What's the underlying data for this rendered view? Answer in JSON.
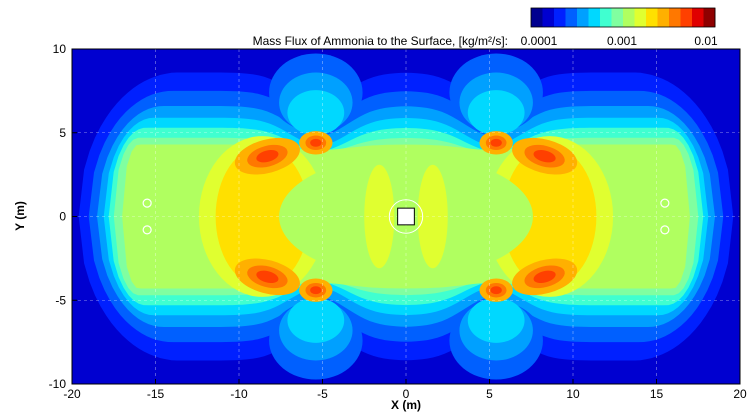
{
  "chart_data": {
    "type": "heatmap",
    "title": "",
    "xlabel": "X (m)",
    "ylabel": "Y (m)",
    "xlim": [
      -20,
      20
    ],
    "ylim": [
      -10,
      10
    ],
    "x_ticks": [
      -20,
      -15,
      -10,
      -5,
      0,
      5,
      10,
      15,
      20
    ],
    "y_ticks": [
      -10,
      -5,
      0,
      5,
      10
    ],
    "grid": "dashed",
    "colorbar": {
      "title": "Mass Flux of Ammonia to the Surface, [kg/m²/s]:",
      "scale": "log",
      "min": 0.0001,
      "max": 0.01,
      "tick_values": [
        0.0001,
        0.001,
        0.01
      ],
      "tick_labels": [
        "0.0001",
        "0.001",
        "0.01"
      ],
      "placement": "top-right",
      "colors": [
        "#00008F",
        "#0000D0",
        "#0020FF",
        "#0060FF",
        "#00A0FF",
        "#00D8FF",
        "#40FFD0",
        "#80FFA0",
        "#B0FF60",
        "#E0FF30",
        "#FFE000",
        "#FFB000",
        "#FF7800",
        "#FF4000",
        "#E00000",
        "#8F0000"
      ]
    },
    "source": {
      "x": 0,
      "y": 0,
      "size": 1,
      "shape": "square"
    },
    "source_ring": {
      "cx": 0,
      "cy": 0,
      "r": 1.0
    },
    "markers": [
      {
        "x": -15.5,
        "y": 0.8
      },
      {
        "x": -15.5,
        "y": -0.8
      },
      {
        "x": 15.5,
        "y": 0.8
      },
      {
        "x": 15.5,
        "y": -0.8
      }
    ],
    "hotspots": [
      {
        "x": -5.4,
        "y": 4.4,
        "level": 0.72
      },
      {
        "x": 5.4,
        "y": 4.4,
        "level": 0.72
      },
      {
        "x": -5.4,
        "y": -4.4,
        "level": 0.72
      },
      {
        "x": 5.4,
        "y": -4.4,
        "level": 0.72
      },
      {
        "x": -8.3,
        "y": 3.6,
        "level": 0.66
      },
      {
        "x": 8.3,
        "y": 3.6,
        "level": 0.66
      },
      {
        "x": -8.3,
        "y": -3.6,
        "level": 0.66
      },
      {
        "x": 8.3,
        "y": -3.6,
        "level": 0.66
      }
    ]
  }
}
